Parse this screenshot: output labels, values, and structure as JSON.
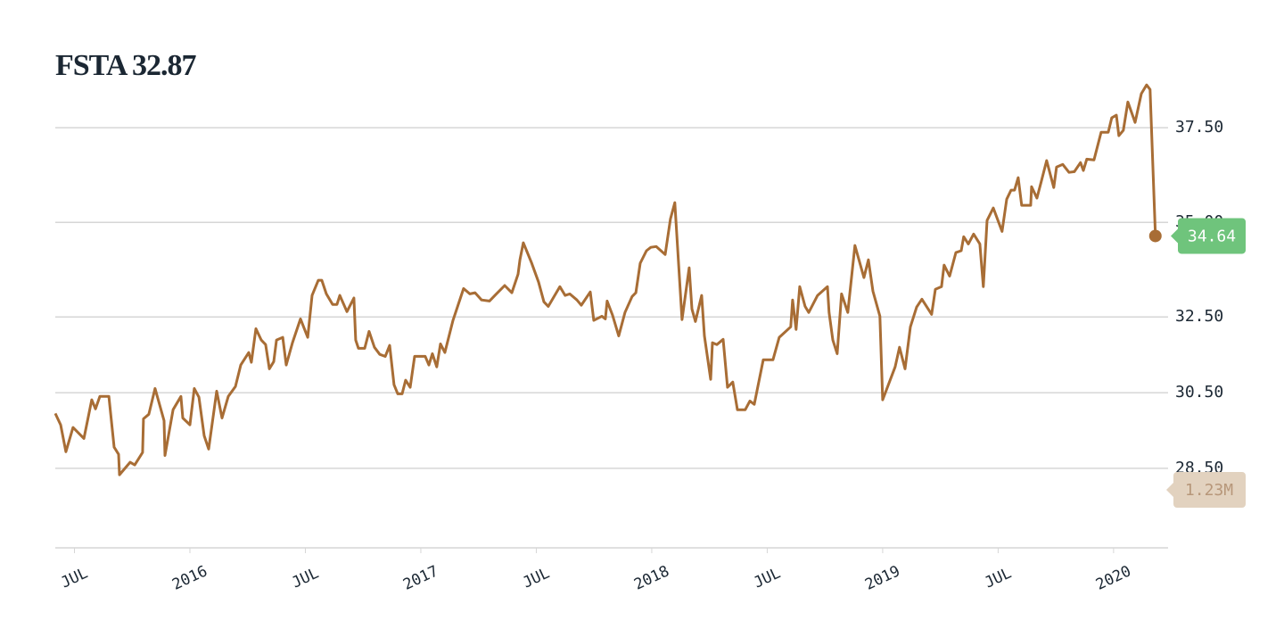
{
  "chart_data": {
    "type": "line",
    "title": "FSTA 32.87",
    "color": "#a86d35",
    "x": [
      2015.417,
      2015.44,
      2015.463,
      2015.494,
      2015.541,
      2015.575,
      2015.591,
      2015.61,
      2015.649,
      2015.672,
      2015.691,
      2015.695,
      2015.741,
      2015.761,
      2015.795,
      2015.799,
      2015.822,
      2015.849,
      2015.888,
      2015.892,
      2015.927,
      2015.961,
      2015.969,
      2016.0,
      2016.019,
      2016.039,
      2016.062,
      2016.081,
      2016.116,
      2016.139,
      2016.166,
      2016.197,
      2016.22,
      2016.255,
      2016.266,
      2016.286,
      2016.309,
      2016.328,
      2016.344,
      2016.363,
      2016.375,
      2016.402,
      2016.417,
      2016.444,
      2016.479,
      2016.51,
      2016.529,
      2016.556,
      2016.571,
      2016.591,
      2016.618,
      2016.637,
      2016.649,
      2016.68,
      2016.71,
      2016.718,
      2016.73,
      2016.757,
      2016.776,
      2016.799,
      2016.822,
      2016.846,
      2016.865,
      2016.884,
      2016.9,
      2016.919,
      2016.934,
      2016.954,
      2016.973,
      2017.019,
      2017.035,
      2017.05,
      2017.069,
      2017.085,
      2017.104,
      2017.139,
      2017.185,
      2017.212,
      2017.235,
      2017.263,
      2017.297,
      2017.324,
      2017.363,
      2017.394,
      2017.421,
      2017.429,
      2017.444,
      2017.479,
      2017.51,
      2017.533,
      2017.552,
      2017.602,
      2017.625,
      2017.645,
      2017.676,
      2017.695,
      2017.734,
      2017.749,
      2017.784,
      2017.799,
      2017.807,
      2017.83,
      2017.857,
      2017.884,
      2017.915,
      2017.931,
      2017.95,
      2017.977,
      2017.996,
      2018.019,
      2018.058,
      2018.081,
      2018.1,
      2018.131,
      2018.162,
      2018.174,
      2018.189,
      2018.216,
      2018.228,
      2018.255,
      2018.263,
      2018.282,
      2018.309,
      2018.328,
      2018.351,
      2018.371,
      2018.405,
      2018.425,
      2018.444,
      2018.483,
      2018.525,
      2018.552,
      2018.602,
      2018.61,
      2018.625,
      2018.641,
      2018.664,
      2018.68,
      2018.718,
      2018.761,
      2018.768,
      2018.784,
      2018.803,
      2018.822,
      2018.849,
      2018.88,
      2018.919,
      2018.938,
      2018.958,
      2018.988,
      2019.0,
      2019.054,
      2019.073,
      2019.097,
      2019.12,
      2019.147,
      2019.17,
      2019.212,
      2019.228,
      2019.255,
      2019.266,
      2019.29,
      2019.317,
      2019.34,
      2019.351,
      2019.371,
      2019.394,
      2019.421,
      2019.436,
      2019.452,
      2019.479,
      2019.517,
      2019.537,
      2019.556,
      2019.571,
      2019.587,
      2019.602,
      2019.641,
      2019.645,
      2019.668,
      2019.687,
      2019.71,
      2019.741,
      2019.753,
      2019.78,
      2019.807,
      2019.83,
      2019.857,
      2019.869,
      2019.884,
      2019.915,
      2019.946,
      2019.977,
      2019.992,
      2020.012,
      2020.023,
      2020.042,
      2020.062,
      2020.093,
      2020.12,
      2020.143,
      2020.158,
      2020.181
    ],
    "values": [
      29.95,
      29.65,
      28.94,
      29.58,
      29.29,
      30.31,
      30.07,
      30.4,
      30.4,
      29.06,
      28.87,
      28.33,
      28.66,
      28.59,
      28.92,
      29.81,
      29.93,
      30.61,
      29.76,
      28.84,
      30.05,
      30.4,
      29.83,
      29.65,
      30.61,
      30.38,
      29.36,
      29.01,
      30.54,
      29.83,
      30.4,
      30.66,
      31.23,
      31.56,
      31.3,
      32.19,
      31.89,
      31.77,
      31.13,
      31.32,
      31.89,
      31.96,
      31.23,
      31.82,
      32.45,
      31.96,
      33.07,
      33.47,
      33.47,
      33.11,
      32.83,
      32.83,
      33.07,
      32.64,
      33.0,
      31.89,
      31.67,
      31.67,
      32.12,
      31.7,
      31.51,
      31.46,
      31.75,
      30.71,
      30.47,
      30.47,
      30.83,
      30.64,
      31.46,
      31.46,
      31.23,
      31.53,
      31.18,
      31.79,
      31.56,
      32.41,
      33.25,
      33.11,
      33.14,
      32.95,
      32.92,
      33.09,
      33.33,
      33.14,
      33.63,
      34.01,
      34.46,
      33.94,
      33.42,
      32.9,
      32.78,
      33.3,
      33.07,
      33.11,
      32.95,
      32.81,
      33.16,
      32.41,
      32.52,
      32.45,
      32.92,
      32.55,
      32.0,
      32.62,
      33.04,
      33.14,
      33.92,
      34.25,
      34.34,
      34.36,
      34.15,
      35.09,
      35.52,
      32.43,
      33.8,
      32.71,
      32.38,
      33.07,
      32.0,
      30.85,
      31.82,
      31.77,
      31.91,
      30.64,
      30.78,
      30.05,
      30.05,
      30.28,
      30.19,
      31.37,
      31.37,
      31.96,
      32.24,
      32.95,
      32.17,
      33.3,
      32.78,
      32.62,
      33.07,
      33.3,
      32.62,
      31.89,
      31.53,
      33.11,
      32.62,
      34.39,
      33.54,
      34.01,
      33.18,
      32.52,
      30.31,
      31.18,
      31.7,
      31.13,
      32.24,
      32.76,
      32.97,
      32.57,
      33.23,
      33.3,
      33.87,
      33.58,
      34.2,
      34.25,
      34.62,
      34.43,
      34.69,
      34.43,
      33.3,
      35.05,
      35.38,
      34.76,
      35.61,
      35.85,
      35.85,
      36.18,
      35.45,
      35.45,
      35.94,
      35.64,
      36.08,
      36.63,
      35.92,
      36.46,
      36.53,
      36.32,
      36.34,
      36.58,
      36.37,
      36.67,
      36.65,
      37.38,
      37.38,
      37.76,
      37.83,
      37.29,
      37.43,
      38.18,
      37.64,
      38.4,
      38.63,
      38.51,
      34.64
    ],
    "xlim": [
      2015.417,
      2020.236
    ],
    "xticks": [
      {
        "value": 2015.5,
        "label": "JUL"
      },
      2016,
      {
        "value": 2016.5,
        "label": "JUL"
      },
      2017,
      {
        "value": 2017.5,
        "label": "JUL"
      },
      2018,
      {
        "value": 2018.5,
        "label": "JUL"
      },
      2019,
      {
        "value": 2019.5,
        "label": "JUL"
      },
      2020
    ],
    "ylim": [
      26.4,
      38.8
    ],
    "yticks": [
      {
        "value": 37.5,
        "label": "37.50"
      },
      {
        "value": 35,
        "label": "35.00"
      },
      {
        "value": 32.5,
        "label": "32.50"
      },
      {
        "value": 30.5,
        "label": "30.50"
      },
      {
        "value": 28.5,
        "label": "28.50"
      }
    ],
    "grid": true,
    "annotations": [
      "34.64",
      "1.23M"
    ]
  }
}
